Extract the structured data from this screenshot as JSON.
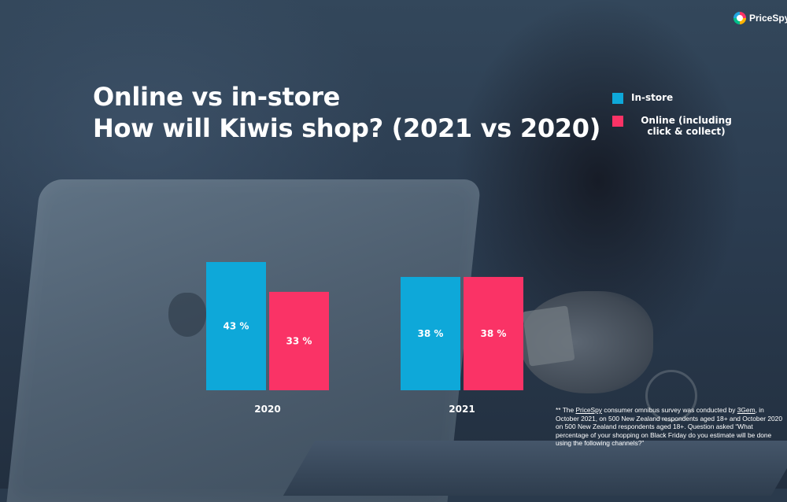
{
  "brand": {
    "name": "PriceSpy",
    "logo_icon": "pricespy-logo-icon"
  },
  "title": {
    "line1": "Online vs in-store",
    "line2": "How will Kiwis shop? (2021 vs 2020)"
  },
  "legend": [
    {
      "label": "In-store",
      "color": "#0ea8d9"
    },
    {
      "label": "Online (including click & collect)",
      "color": "#fa3366"
    }
  ],
  "chart_data": {
    "type": "bar",
    "title": "",
    "categories": [
      "2020",
      "2021"
    ],
    "series": [
      {
        "name": "In-store",
        "color": "#0ea8d9",
        "values": [
          43,
          38
        ],
        "labels": [
          "43 %",
          "38 %"
        ]
      },
      {
        "name": "Online (including click & collect)",
        "color": "#fa3366",
        "values": [
          33,
          38
        ],
        "labels": [
          "33 %",
          "38 %"
        ]
      }
    ],
    "xlabel": "",
    "ylabel": "",
    "ylim": [
      0,
      43
    ],
    "grid": false,
    "legend_position": "top-right"
  },
  "footnote": {
    "prefix": "** The ",
    "link1": "PriceSpy",
    "mid1": " consumer omnibus survey was conducted by ",
    "link2": "3Gem",
    "rest": ", in October 2021, on 500 New Zealand respondents aged 18+ and October 2020 on 500 New Zealand respondents aged 18+.   Question asked “What percentage of your shopping on Black Friday do you estimate will be done using the following channels?”"
  }
}
